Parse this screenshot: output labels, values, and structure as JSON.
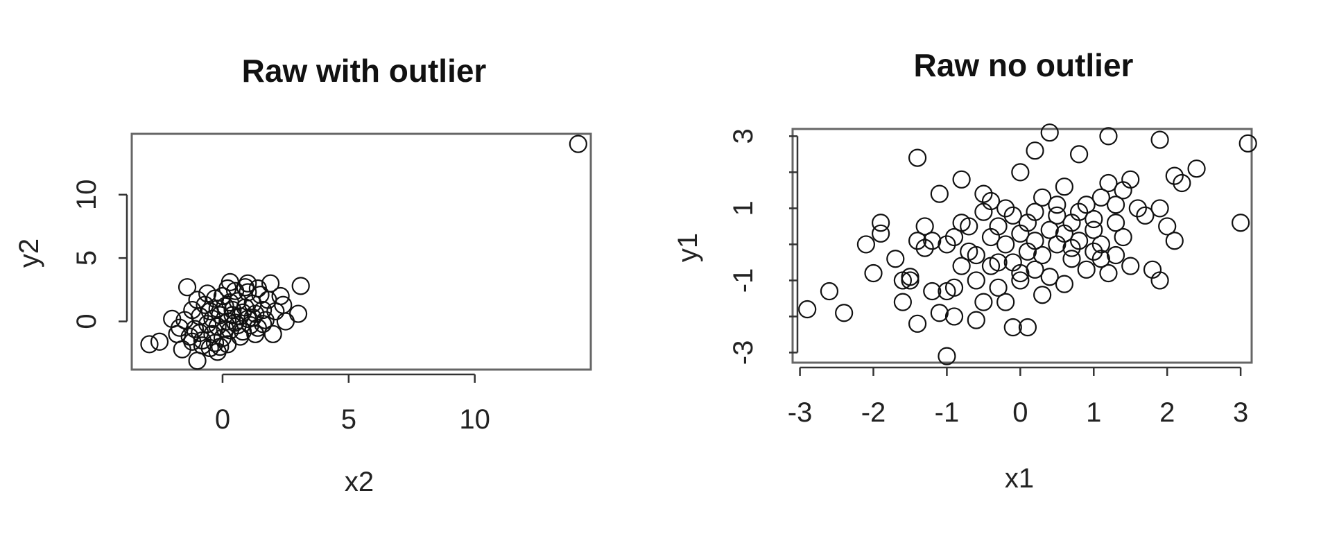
{
  "chart_data": [
    {
      "type": "scatter",
      "title": "Raw with outlier",
      "xlabel": "x2",
      "ylabel": "y2",
      "xlim": [
        -3.6,
        14.6
      ],
      "ylim": [
        -3.8,
        14.8
      ],
      "xticks": [
        0,
        5,
        10
      ],
      "yticks": [
        0,
        5,
        10
      ],
      "marker": "open-circle",
      "points": [
        [
          14.1,
          14.0
        ],
        [
          -2.9,
          -1.8
        ],
        [
          -2.5,
          -1.6
        ],
        [
          -2.0,
          0.2
        ],
        [
          -1.7,
          -0.5
        ],
        [
          -1.4,
          2.7
        ],
        [
          -1.0,
          -3.1
        ],
        [
          -0.2,
          -2.4
        ],
        [
          0.3,
          3.1
        ],
        [
          1.0,
          3.0
        ],
        [
          1.9,
          3.0
        ],
        [
          3.1,
          2.8
        ],
        [
          3.0,
          0.6
        ],
        [
          2.3,
          2.0
        ],
        [
          2.0,
          -1.0
        ],
        [
          -1.3,
          -1.2
        ],
        [
          -1.1,
          -0.6
        ],
        [
          -0.9,
          0.4
        ],
        [
          -0.8,
          -1.9
        ],
        [
          -0.7,
          1.3
        ],
        [
          -0.6,
          -0.2
        ],
        [
          -0.5,
          0.8
        ],
        [
          -0.4,
          -1.0
        ],
        [
          -0.3,
          1.8
        ],
        [
          -0.2,
          -0.4
        ],
        [
          -0.1,
          0.5
        ],
        [
          0.0,
          -1.3
        ],
        [
          0.1,
          1.2
        ],
        [
          0.2,
          0.0
        ],
        [
          0.3,
          -0.7
        ],
        [
          0.4,
          0.9
        ],
        [
          0.5,
          -0.1
        ],
        [
          0.6,
          1.6
        ],
        [
          0.7,
          0.4
        ],
        [
          0.8,
          -0.8
        ],
        [
          0.9,
          1.1
        ],
        [
          1.0,
          0.2
        ],
        [
          1.1,
          -0.3
        ],
        [
          1.2,
          1.4
        ],
        [
          1.3,
          0.6
        ],
        [
          1.4,
          -0.5
        ],
        [
          1.5,
          2.1
        ],
        [
          1.6,
          0.9
        ],
        [
          1.7,
          0.1
        ],
        [
          1.8,
          1.7
        ],
        [
          2.1,
          0.8
        ],
        [
          2.4,
          1.3
        ],
        [
          -1.6,
          -2.2
        ],
        [
          -1.2,
          0.9
        ],
        [
          -0.8,
          -1.5
        ],
        [
          -0.6,
          2.2
        ],
        [
          -0.3,
          -1.7
        ],
        [
          0.0,
          2.0
        ],
        [
          0.2,
          -1.8
        ],
        [
          0.5,
          2.4
        ],
        [
          0.7,
          -1.2
        ],
        [
          1.0,
          2.3
        ],
        [
          1.3,
          -1.0
        ],
        [
          -1.5,
          0.1
        ],
        [
          -1.0,
          1.7
        ],
        [
          -0.4,
          0.2
        ],
        [
          0.1,
          -0.6
        ],
        [
          0.4,
          0.5
        ],
        [
          0.8,
          0.7
        ],
        [
          1.2,
          0.3
        ],
        [
          -0.2,
          1.0
        ],
        [
          0.6,
          -0.3
        ],
        [
          -0.9,
          -0.9
        ],
        [
          0.3,
          1.5
        ],
        [
          1.6,
          -0.2
        ],
        [
          -1.8,
          -1.0
        ],
        [
          -1.2,
          -1.6
        ],
        [
          -0.5,
          -2.1
        ],
        [
          0.9,
          2.7
        ],
        [
          1.4,
          2.6
        ],
        [
          2.5,
          0.0
        ],
        [
          -0.1,
          -2.0
        ],
        [
          0.2,
          2.6
        ]
      ]
    },
    {
      "type": "scatter",
      "title": "Raw no outlier",
      "xlabel": "x1",
      "ylabel": "y1",
      "xlim": [
        -3.1,
        3.15
      ],
      "ylim": [
        -3.28,
        3.2
      ],
      "xticks": [
        -3,
        -2,
        -1,
        0,
        1,
        2,
        3
      ],
      "yticks": [
        -3,
        -1,
        1,
        3
      ],
      "yminorticks": [
        -2,
        0,
        2
      ],
      "marker": "open-circle",
      "points": [
        [
          -2.9,
          -1.8
        ],
        [
          -2.6,
          -1.3
        ],
        [
          -2.4,
          -1.9
        ],
        [
          -2.1,
          0.0
        ],
        [
          -2.0,
          -0.8
        ],
        [
          -1.9,
          0.3
        ],
        [
          -1.9,
          0.6
        ],
        [
          -1.6,
          -1.0
        ],
        [
          -1.6,
          -1.6
        ],
        [
          -1.5,
          -0.9
        ],
        [
          -1.4,
          2.4
        ],
        [
          -1.4,
          -2.2
        ],
        [
          -1.4,
          0.1
        ],
        [
          -1.3,
          -0.1
        ],
        [
          -1.2,
          -1.3
        ],
        [
          -1.2,
          0.1
        ],
        [
          -1.1,
          -1.9
        ],
        [
          -1.1,
          1.4
        ],
        [
          -1.0,
          -1.3
        ],
        [
          -1.0,
          -3.1
        ],
        [
          -0.9,
          -2.0
        ],
        [
          -0.9,
          -1.2
        ],
        [
          -0.9,
          0.2
        ],
        [
          -0.8,
          1.8
        ],
        [
          -0.8,
          0.6
        ],
        [
          -0.8,
          -0.6
        ],
        [
          -0.7,
          0.5
        ],
        [
          -0.6,
          -2.1
        ],
        [
          -0.6,
          -0.3
        ],
        [
          -0.6,
          -1.0
        ],
        [
          -0.5,
          1.4
        ],
        [
          -0.5,
          -1.6
        ],
        [
          -0.4,
          1.2
        ],
        [
          -0.4,
          -0.6
        ],
        [
          -0.4,
          0.2
        ],
        [
          -0.3,
          -1.2
        ],
        [
          -0.3,
          0.5
        ],
        [
          -0.2,
          -1.6
        ],
        [
          -0.2,
          0.0
        ],
        [
          -0.1,
          -2.3
        ],
        [
          -0.1,
          0.8
        ],
        [
          -0.1,
          -0.5
        ],
        [
          0.0,
          2.0
        ],
        [
          0.0,
          0.3
        ],
        [
          0.0,
          -1.0
        ],
        [
          0.1,
          -2.3
        ],
        [
          0.1,
          -0.2
        ],
        [
          0.1,
          0.6
        ],
        [
          0.2,
          2.6
        ],
        [
          0.2,
          -0.7
        ],
        [
          0.2,
          0.1
        ],
        [
          0.3,
          1.3
        ],
        [
          0.3,
          -0.3
        ],
        [
          0.4,
          3.1
        ],
        [
          0.4,
          0.4
        ],
        [
          0.4,
          -0.9
        ],
        [
          0.5,
          0.0
        ],
        [
          0.5,
          0.8
        ],
        [
          0.6,
          1.6
        ],
        [
          0.6,
          -1.1
        ],
        [
          0.6,
          0.3
        ],
        [
          0.7,
          -0.4
        ],
        [
          0.7,
          0.6
        ],
        [
          0.8,
          2.5
        ],
        [
          0.8,
          0.1
        ],
        [
          0.9,
          -0.7
        ],
        [
          0.9,
          1.1
        ],
        [
          1.0,
          0.4
        ],
        [
          1.0,
          -0.2
        ],
        [
          1.1,
          1.3
        ],
        [
          1.1,
          0.0
        ],
        [
          1.2,
          3.0
        ],
        [
          1.2,
          -0.8
        ],
        [
          1.2,
          1.7
        ],
        [
          1.3,
          0.6
        ],
        [
          1.3,
          -0.3
        ],
        [
          1.4,
          1.5
        ],
        [
          1.4,
          0.2
        ],
        [
          1.5,
          -0.6
        ],
        [
          1.6,
          1.0
        ],
        [
          1.7,
          0.8
        ],
        [
          1.8,
          -0.7
        ],
        [
          1.9,
          1.0
        ],
        [
          1.9,
          2.9
        ],
        [
          1.9,
          -1.0
        ],
        [
          2.0,
          0.5
        ],
        [
          2.1,
          1.9
        ],
        [
          2.1,
          0.1
        ],
        [
          2.2,
          1.7
        ],
        [
          2.4,
          2.1
        ],
        [
          3.0,
          0.6
        ],
        [
          3.1,
          2.8
        ],
        [
          -1.7,
          -0.4
        ],
        [
          -1.3,
          0.5
        ],
        [
          -0.7,
          -0.2
        ],
        [
          -0.2,
          1.0
        ],
        [
          0.3,
          -1.4
        ],
        [
          0.8,
          0.9
        ],
        [
          1.1,
          -0.4
        ],
        [
          1.5,
          1.8
        ],
        [
          -0.5,
          0.9
        ],
        [
          0.0,
          -0.8
        ],
        [
          0.5,
          1.1
        ],
        [
          1.0,
          0.7
        ],
        [
          -1.0,
          0.0
        ],
        [
          -0.3,
          -0.5
        ],
        [
          0.2,
          0.9
        ],
        [
          0.7,
          -0.1
        ],
        [
          1.3,
          1.1
        ],
        [
          -1.5,
          -1.0
        ]
      ]
    }
  ]
}
